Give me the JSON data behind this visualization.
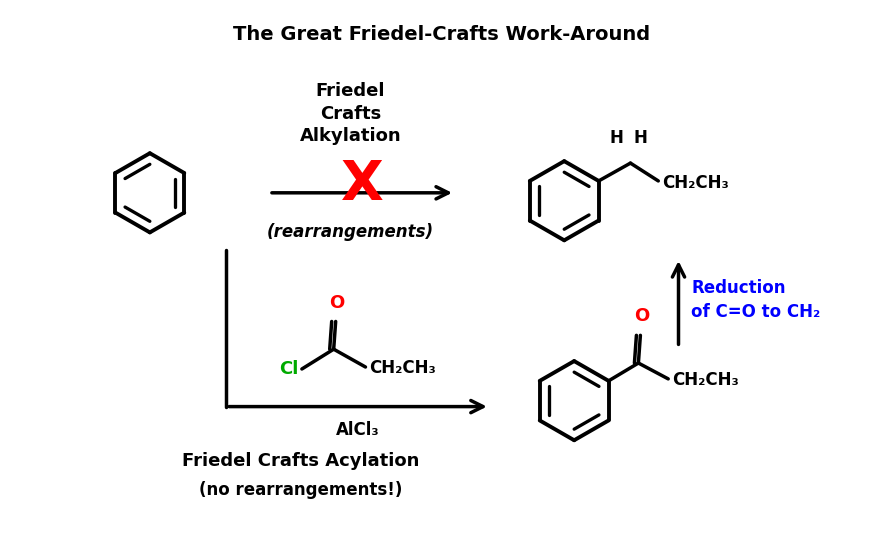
{
  "title": "The Great Friedel-Crafts Work-Around",
  "title_fontsize": 14,
  "title_fontweight": "bold",
  "background_color": "#ffffff",
  "top_arrow_label": "Friedel\nCrafts\nAlkylation",
  "top_arrow_sublabel": "(rearrangements)",
  "bottom_arrow_label": "AlCl₃",
  "bottom_text1": "Friedel Crafts Acylation",
  "bottom_text2": "(no rearrangements!)",
  "side_arrow_label": "Reduction\nof C=O to CH₂",
  "x_label_color": "#ff0000",
  "cl_color": "#00aa00",
  "o_color": "#ff0000",
  "blue_color": "#0000ff"
}
